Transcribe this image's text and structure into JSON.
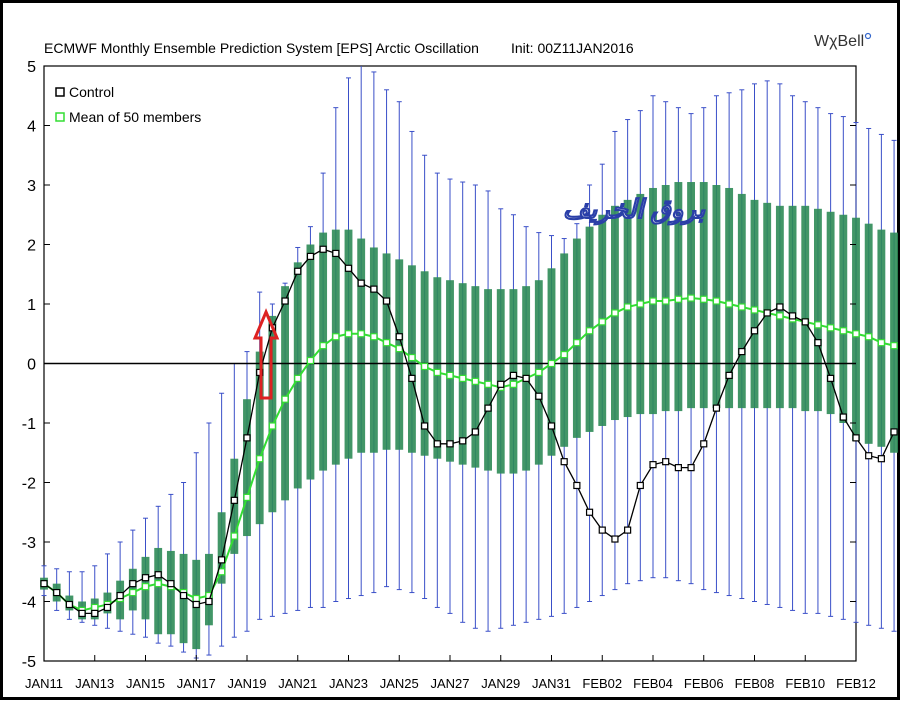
{
  "chart_data": {
    "type": "line",
    "title": "ECMWF Monthly Ensemble Prediction System [EPS] Arctic Oscillation",
    "init": "Init: 00Z11JAN2016",
    "brand": "WχBell",
    "watermark": "بروق الخريف",
    "ylim": [
      -5,
      5
    ],
    "yticks": [
      "5",
      "4",
      "3",
      "2",
      "1",
      "0",
      "-1",
      "-2",
      "-3",
      "-4",
      "-5"
    ],
    "xlim": [
      0,
      64
    ],
    "xtick_positions": [
      0,
      4,
      8,
      12,
      16,
      20,
      24,
      28,
      32,
      36,
      40,
      44,
      48,
      52,
      56,
      60,
      64
    ],
    "xtick_labels": [
      "JAN11",
      "JAN13",
      "JAN15",
      "JAN17",
      "JAN19",
      "JAN21",
      "JAN23",
      "JAN25",
      "JAN27",
      "JAN29",
      "JAN31",
      "FEB02",
      "FEB04",
      "FEB06",
      "FEB08",
      "FEB10",
      "FEB12"
    ],
    "legend": [
      {
        "label": "Control",
        "color": "#000000"
      },
      {
        "label": "Mean of 50 members",
        "color": "#33dd33"
      }
    ],
    "colors": {
      "control": "#000000",
      "mean": "#33dd33",
      "box": "#2e8b57",
      "whisker": "#3a4fc8",
      "zero_line": "#000000",
      "arrow": "#dd2222"
    },
    "control": [
      -3.7,
      -3.85,
      -4.05,
      -4.2,
      -4.2,
      -4.1,
      -3.9,
      -3.7,
      -3.6,
      -3.55,
      -3.7,
      -3.9,
      -4.05,
      -4.0,
      -3.3,
      -2.3,
      -1.25,
      -0.15,
      0.6,
      1.05,
      1.55,
      1.8,
      1.92,
      1.85,
      1.6,
      1.35,
      1.25,
      1.05,
      0.45,
      -0.25,
      -1.05,
      -1.35,
      -1.35,
      -1.3,
      -1.15,
      -0.75,
      -0.35,
      -0.2,
      -0.25,
      -0.55,
      -1.05,
      -1.65,
      -2.05,
      -2.5,
      -2.8,
      -2.95,
      -2.8,
      -2.05,
      -1.7,
      -1.65,
      -1.75,
      -1.75,
      -1.35,
      -0.75,
      -0.2,
      0.2,
      0.55,
      0.85,
      0.95,
      0.8,
      0.7,
      0.35,
      -0.25,
      -0.9,
      -1.25,
      -1.55,
      -1.6,
      -1.15
    ],
    "mean": [
      -3.7,
      -3.85,
      -4.05,
      -4.15,
      -4.1,
      -4.05,
      -3.95,
      -3.85,
      -3.75,
      -3.7,
      -3.75,
      -3.85,
      -3.95,
      -3.9,
      -3.5,
      -2.9,
      -2.25,
      -1.6,
      -1.05,
      -0.6,
      -0.25,
      0.05,
      0.3,
      0.45,
      0.5,
      0.5,
      0.45,
      0.35,
      0.25,
      0.1,
      -0.05,
      -0.15,
      -0.2,
      -0.25,
      -0.3,
      -0.35,
      -0.4,
      -0.35,
      -0.25,
      -0.15,
      0.0,
      0.15,
      0.35,
      0.55,
      0.7,
      0.85,
      0.95,
      1.0,
      1.05,
      1.05,
      1.08,
      1.1,
      1.08,
      1.05,
      1.0,
      0.95,
      0.9,
      0.85,
      0.8,
      0.75,
      0.7,
      0.65,
      0.6,
      0.55,
      0.5,
      0.45,
      0.35,
      0.3
    ],
    "box_low": [
      -3.8,
      -4.0,
      -4.15,
      -4.3,
      -4.3,
      -4.2,
      -4.3,
      -4.15,
      -4.3,
      -4.55,
      -4.55,
      -4.7,
      -4.8,
      -4.4,
      -3.7,
      -3.2,
      -2.9,
      -2.7,
      -2.5,
      -2.3,
      -2.1,
      -1.95,
      -1.8,
      -1.7,
      -1.6,
      -1.5,
      -1.5,
      -1.45,
      -1.45,
      -1.5,
      -1.55,
      -1.6,
      -1.65,
      -1.7,
      -1.75,
      -1.8,
      -1.85,
      -1.85,
      -1.8,
      -1.7,
      -1.55,
      -1.4,
      -1.25,
      -1.15,
      -1.05,
      -0.95,
      -0.9,
      -0.85,
      -0.85,
      -0.8,
      -0.8,
      -0.75,
      -0.75,
      -0.75,
      -0.75,
      -0.75,
      -0.75,
      -0.75,
      -0.75,
      -0.75,
      -0.8,
      -0.8,
      -0.85,
      -1.0,
      -1.3,
      -1.35,
      -1.4,
      -1.5
    ],
    "box_high": [
      -3.6,
      -3.7,
      -3.9,
      -4.0,
      -3.95,
      -3.85,
      -3.65,
      -3.45,
      -3.25,
      -3.1,
      -3.15,
      -3.2,
      -3.3,
      -3.2,
      -2.5,
      -1.6,
      -0.6,
      0.2,
      0.8,
      1.3,
      1.7,
      2.0,
      2.2,
      2.25,
      2.25,
      2.1,
      1.95,
      1.85,
      1.75,
      1.65,
      1.55,
      1.45,
      1.4,
      1.35,
      1.3,
      1.25,
      1.25,
      1.25,
      1.3,
      1.4,
      1.6,
      1.85,
      2.1,
      2.3,
      2.5,
      2.65,
      2.75,
      2.85,
      2.95,
      3.0,
      3.05,
      3.05,
      3.05,
      3.0,
      2.95,
      2.85,
      2.75,
      2.7,
      2.65,
      2.65,
      2.65,
      2.6,
      2.55,
      2.5,
      2.45,
      2.35,
      2.25,
      2.2
    ],
    "whisker_low": [
      -3.9,
      -4.15,
      -4.3,
      -4.35,
      -4.4,
      -4.45,
      -4.5,
      -4.55,
      -4.6,
      -4.7,
      -4.75,
      -4.85,
      -4.95,
      -4.9,
      -4.75,
      -4.6,
      -4.5,
      -4.3,
      -4.25,
      -4.2,
      -4.15,
      -4.1,
      -4.1,
      -4.0,
      -3.95,
      -3.9,
      -3.85,
      -3.75,
      -3.8,
      -3.85,
      -3.95,
      -4.1,
      -4.2,
      -4.35,
      -4.45,
      -4.5,
      -4.45,
      -4.4,
      -4.35,
      -4.3,
      -4.25,
      -4.2,
      -4.1,
      -4.0,
      -3.9,
      -3.8,
      -3.7,
      -3.65,
      -3.6,
      -3.6,
      -3.65,
      -3.7,
      -3.8,
      -3.85,
      -3.9,
      -3.95,
      -4.0,
      -4.05,
      -4.1,
      -4.15,
      -4.2,
      -4.2,
      -4.25,
      -4.3,
      -4.35,
      -4.4,
      -4.45,
      -4.5
    ],
    "whisker_high": [
      -3.4,
      -3.45,
      -3.5,
      -3.5,
      -3.4,
      -3.2,
      -3.0,
      -2.8,
      -2.6,
      -2.4,
      -2.2,
      -2.0,
      -1.5,
      -1.0,
      -0.5,
      0.0,
      0.2,
      1.2,
      1.0,
      1.35,
      1.95,
      2.3,
      3.2,
      4.3,
      4.8,
      5.2,
      4.9,
      4.6,
      4.4,
      3.9,
      3.5,
      3.2,
      3.1,
      3.05,
      3.0,
      2.9,
      2.6,
      2.5,
      2.3,
      2.2,
      2.15,
      2.1,
      2.35,
      3.0,
      3.35,
      3.9,
      4.1,
      4.25,
      4.5,
      4.4,
      4.3,
      4.2,
      4.3,
      4.5,
      4.55,
      4.6,
      4.7,
      4.75,
      4.7,
      4.5,
      4.4,
      4.3,
      4.2,
      4.15,
      4.05,
      3.95,
      3.85,
      3.75
    ],
    "arrow_x": 17.5
  }
}
